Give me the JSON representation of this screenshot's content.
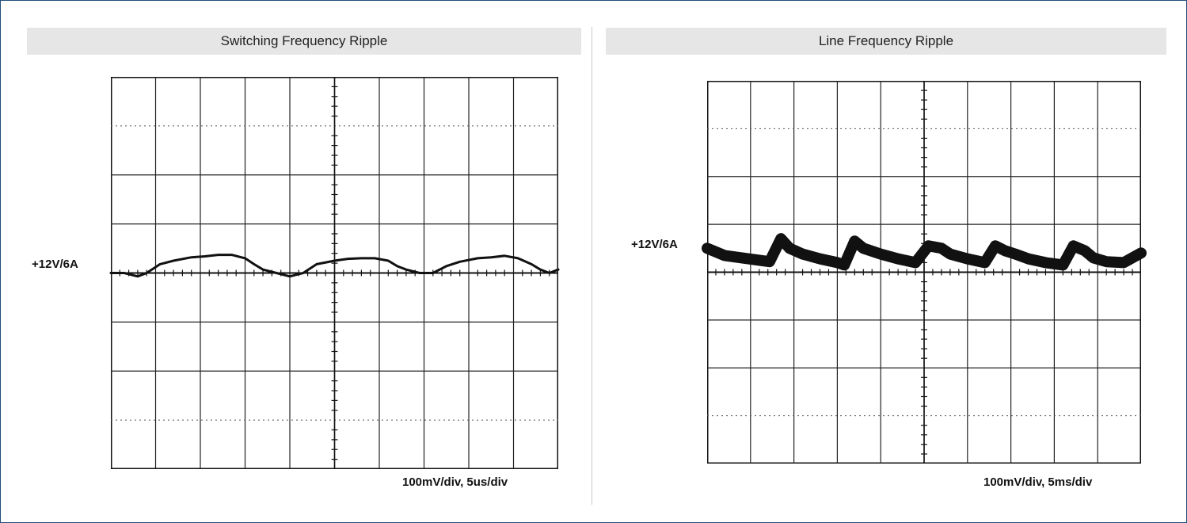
{
  "chart_data": [
    {
      "type": "line",
      "title": "Switching Frequency Ripple",
      "channel_label": "+12V/6A",
      "scale_text": "100mV/div,  5us/div",
      "x_unit": "us",
      "y_unit": "mV",
      "xlim": [
        0,
        50
      ],
      "ylim": [
        -400,
        400
      ],
      "grid": true,
      "x_divisions": 10,
      "y_divisions": 8,
      "reference_level": 0,
      "trace_color": "#111111",
      "series": [
        {
          "x": [
            0,
            1.5,
            3,
            4,
            5.5,
            7,
            9,
            10.5,
            12,
            13.5,
            15,
            16,
            17,
            18.5,
            20,
            21.5,
            23,
            25,
            26.5,
            28,
            29.5,
            31,
            32,
            33,
            34.5,
            36,
            37.5,
            39,
            41,
            42.5,
            44,
            45.5,
            47,
            48,
            49,
            50
          ],
          "values": [
            0,
            0,
            -7,
            0,
            18,
            25,
            32,
            34,
            37,
            37,
            30,
            18,
            7,
            0,
            -7,
            0,
            18,
            25,
            29,
            30,
            30,
            25,
            14,
            7,
            0,
            0,
            14,
            23,
            30,
            32,
            35,
            30,
            18,
            7,
            0,
            7
          ]
        }
      ]
    },
    {
      "type": "line",
      "title": "Line Frequency Ripple",
      "channel_label": "+12V/6A",
      "scale_text": "100mV/div,  5ms/div",
      "x_unit": "ms",
      "y_unit": "mV",
      "xlim": [
        0,
        50
      ],
      "ylim": [
        -400,
        400
      ],
      "grid": true,
      "x_divisions": 10,
      "y_divisions": 8,
      "reference_level": 0,
      "trace_color": "#111111",
      "series": [
        {
          "x": [
            0,
            2,
            4,
            6,
            7.2,
            8.5,
            9.5,
            11,
            13,
            15,
            15.8,
            17,
            18,
            20,
            22,
            24,
            25.5,
            27,
            28,
            30,
            32,
            33.2,
            34.3,
            35.5,
            37,
            39,
            41,
            42.2,
            43.5,
            44.5,
            46,
            48,
            50
          ],
          "values": [
            50,
            35,
            30,
            25,
            22,
            70,
            50,
            38,
            28,
            20,
            15,
            65,
            50,
            38,
            28,
            20,
            55,
            50,
            38,
            28,
            20,
            55,
            45,
            38,
            28,
            20,
            15,
            55,
            45,
            30,
            22,
            20,
            40
          ]
        }
      ]
    }
  ]
}
